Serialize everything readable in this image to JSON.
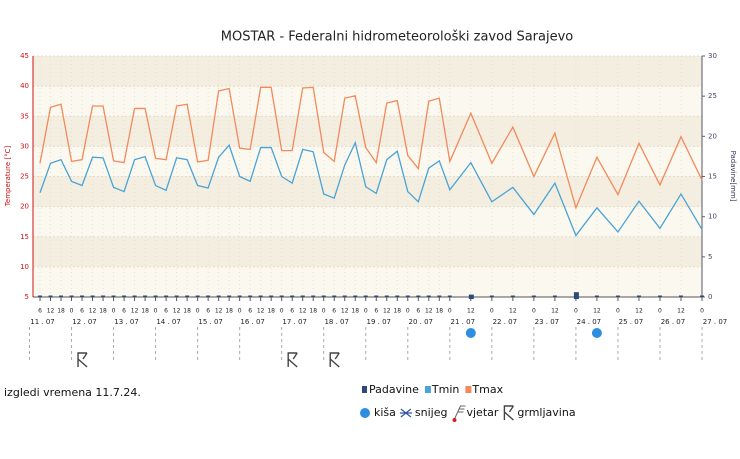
{
  "chart_data": {
    "type": "line",
    "title": "MOSTAR - Federalni hidrometeorološki zavod Sarajevo",
    "ylabel": "Temperature [°C]",
    "y2label": "Padavine[mm]",
    "footer": "izgledi vremena 11.7.24.",
    "x": [
      6,
      12,
      18,
      24,
      30,
      36,
      42,
      48,
      54,
      60,
      66,
      72,
      78,
      84,
      90,
      96,
      102,
      108,
      114,
      120,
      126,
      132,
      138,
      144,
      150,
      156,
      162,
      168,
      174,
      180,
      186,
      192,
      198,
      204,
      210,
      216,
      222,
      228,
      234,
      240,
      252,
      264,
      276,
      288,
      300,
      312,
      324,
      336,
      348,
      360,
      372,
      384
    ],
    "xlim": [
      2,
      384
    ],
    "xticks": [
      {
        "value": 6,
        "label": "6"
      },
      {
        "value": 12,
        "label": "12"
      },
      {
        "value": 18,
        "label": "18"
      },
      {
        "value": 24,
        "label": "0"
      },
      {
        "value": 30,
        "label": "6"
      },
      {
        "value": 36,
        "label": "12"
      },
      {
        "value": 42,
        "label": "18"
      },
      {
        "value": 48,
        "label": "0"
      },
      {
        "value": 54,
        "label": "6"
      },
      {
        "value": 60,
        "label": "12"
      },
      {
        "value": 66,
        "label": "18"
      },
      {
        "value": 72,
        "label": "0"
      },
      {
        "value": 78,
        "label": "6"
      },
      {
        "value": 84,
        "label": "12"
      },
      {
        "value": 90,
        "label": "18"
      },
      {
        "value": 96,
        "label": "0"
      },
      {
        "value": 102,
        "label": "6"
      },
      {
        "value": 108,
        "label": "12"
      },
      {
        "value": 114,
        "label": "18"
      },
      {
        "value": 120,
        "label": "0"
      },
      {
        "value": 126,
        "label": "6"
      },
      {
        "value": 132,
        "label": "12"
      },
      {
        "value": 138,
        "label": "18"
      },
      {
        "value": 144,
        "label": "0"
      },
      {
        "value": 150,
        "label": "6"
      },
      {
        "value": 156,
        "label": "12"
      },
      {
        "value": 162,
        "label": "18"
      },
      {
        "value": 168,
        "label": "0"
      },
      {
        "value": 174,
        "label": "6"
      },
      {
        "value": 180,
        "label": "12"
      },
      {
        "value": 186,
        "label": "18"
      },
      {
        "value": 192,
        "label": "0"
      },
      {
        "value": 198,
        "label": "6"
      },
      {
        "value": 204,
        "label": "12"
      },
      {
        "value": 210,
        "label": "18"
      },
      {
        "value": 216,
        "label": "0"
      },
      {
        "value": 222,
        "label": "6"
      },
      {
        "value": 228,
        "label": "12"
      },
      {
        "value": 234,
        "label": "18"
      },
      {
        "value": 240,
        "label": "0"
      },
      {
        "value": 252,
        "label": "12"
      },
      {
        "value": 264,
        "label": "0"
      },
      {
        "value": 276,
        "label": "12"
      },
      {
        "value": 288,
        "label": "0"
      },
      {
        "value": 300,
        "label": "12"
      },
      {
        "value": 312,
        "label": "0"
      },
      {
        "value": 324,
        "label": "12"
      },
      {
        "value": 336,
        "label": "0"
      },
      {
        "value": 348,
        "label": "12"
      },
      {
        "value": 360,
        "label": "0"
      },
      {
        "value": 372,
        "label": "12"
      },
      {
        "value": 384,
        "label": "0"
      }
    ],
    "date_labels": [
      {
        "value": 0,
        "label": "11 . 07"
      },
      {
        "value": 24,
        "label": "12 . 07"
      },
      {
        "value": 48,
        "label": "13 . 07"
      },
      {
        "value": 72,
        "label": "14 . 07"
      },
      {
        "value": 96,
        "label": "15 . 07"
      },
      {
        "value": 120,
        "label": "16 . 07"
      },
      {
        "value": 144,
        "label": "17 . 07"
      },
      {
        "value": 168,
        "label": "18 . 07"
      },
      {
        "value": 192,
        "label": "19 . 07"
      },
      {
        "value": 216,
        "label": "20 . 07"
      },
      {
        "value": 240,
        "label": "21 . 07"
      },
      {
        "value": 264,
        "label": "22 . 07"
      },
      {
        "value": 288,
        "label": "23 . 07"
      },
      {
        "value": 312,
        "label": "24 . 07"
      },
      {
        "value": 336,
        "label": "25 . 07"
      },
      {
        "value": 360,
        "label": "26 . 07"
      },
      {
        "value": 384,
        "label": "27 . 07"
      }
    ],
    "ylim": [
      5,
      45
    ],
    "yticks": [
      5,
      10,
      15,
      20,
      25,
      30,
      35,
      40,
      45
    ],
    "y2lim": [
      0,
      30
    ],
    "y2ticks": [
      0,
      5,
      10,
      15,
      20,
      25,
      30
    ],
    "grid": true,
    "series": [
      {
        "name": "Padavine",
        "color": "#2f4a7a",
        "axis": "y2",
        "kind": "bar",
        "values": [
          0,
          0,
          0,
          0,
          0,
          0,
          0,
          0,
          0,
          0,
          0,
          0,
          0,
          0,
          0,
          0,
          0,
          0,
          0,
          0,
          0,
          0,
          0,
          0,
          0,
          0,
          0,
          0,
          0,
          0,
          0,
          0,
          0,
          0,
          0,
          0,
          0,
          0,
          0,
          0,
          0.3,
          0,
          0,
          0,
          0,
          0.6,
          0,
          0,
          0,
          0,
          0,
          0
        ]
      },
      {
        "name": "Tmin",
        "color": "#4aa3d6",
        "values": [
          22.3,
          27.2,
          27.8,
          24.2,
          23.5,
          28.2,
          28.1,
          23.2,
          22.5,
          27.8,
          28.3,
          23.5,
          22.7,
          28.1,
          27.8,
          23.5,
          23.1,
          28.2,
          30.2,
          25,
          24.2,
          29.8,
          29.8,
          25,
          23.9,
          29.5,
          29.1,
          22.1,
          21.4,
          26.9,
          30.6,
          23.3,
          22.2,
          27.8,
          29.2,
          22.5,
          20.8,
          26.4,
          27.6,
          22.8,
          27.3,
          20.8,
          23.2,
          18.7,
          23.9,
          15.2,
          19.8,
          15.8,
          20.9,
          16.4,
          22.1,
          16.2
        ]
      },
      {
        "name": "Tmax",
        "color": "#f28a5c",
        "values": [
          27.2,
          36.5,
          37,
          27.5,
          27.8,
          36.7,
          36.7,
          27.6,
          27.3,
          36.3,
          36.3,
          28,
          27.8,
          36.7,
          37,
          27.4,
          27.7,
          39.2,
          39.6,
          29.7,
          29.5,
          39.8,
          39.8,
          29.3,
          29.3,
          39.7,
          39.8,
          29,
          27.5,
          38,
          38.4,
          29.8,
          27.3,
          37.2,
          37.6,
          28.5,
          26.3,
          37.5,
          38,
          27.5,
          35.5,
          27.2,
          33.2,
          25,
          32.2,
          19.8,
          28.2,
          22,
          30.5,
          23.6,
          31.6,
          24.4
        ]
      }
    ],
    "symbols": [
      {
        "name": "kiša",
        "color": "#2e8fe0",
        "x": [
          252,
          324
        ]
      },
      {
        "name": "snijeg",
        "color": "#3355aa",
        "x": []
      },
      {
        "name": "vjetar",
        "color": "#666666",
        "x": []
      },
      {
        "name": "grmljavina",
        "color": "#444444",
        "x": [
          30,
          150,
          174
        ]
      }
    ]
  }
}
